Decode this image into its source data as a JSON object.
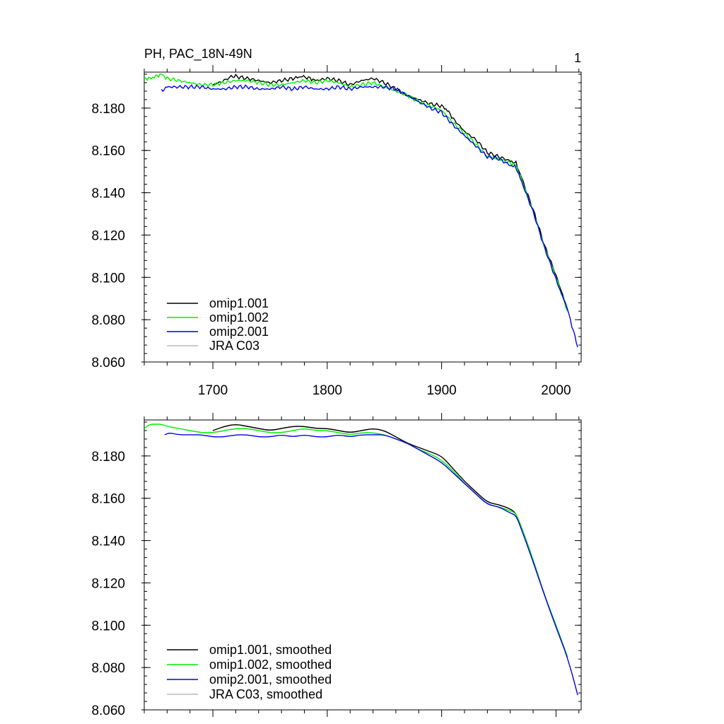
{
  "figure": {
    "title": "PH, PAC_18N-49N",
    "page_number": "1"
  },
  "chart_data": [
    {
      "type": "line",
      "title": "",
      "xlabel": "",
      "ylabel": "",
      "xlim": [
        1640,
        2022
      ],
      "ylim": [
        8.06,
        8.197
      ],
      "yticks": [
        "8.060",
        "8.080",
        "8.100",
        "8.120",
        "8.140",
        "8.160",
        "8.180"
      ],
      "xticks": [
        "1700",
        "1800",
        "1900",
        "2000"
      ],
      "grid": false,
      "legend_position": "bottom-left",
      "series": [
        {
          "name": "omip1.001",
          "color": "#000000",
          "x": [
            1700,
            1710,
            1716,
            1720,
            1730,
            1740,
            1750,
            1760,
            1770,
            1778,
            1785,
            1790,
            1800,
            1810,
            1820,
            1830,
            1840,
            1850,
            1860,
            1870,
            1880,
            1890,
            1900,
            1905,
            1910,
            1920,
            1930,
            1940,
            1950,
            1960,
            1965,
            1970,
            1980,
            1990,
            2000,
            2010
          ],
          "y": [
            8.191,
            8.193,
            8.195,
            8.195,
            8.194,
            8.193,
            8.192,
            8.193,
            8.194,
            8.195,
            8.194,
            8.193,
            8.194,
            8.193,
            8.191,
            8.193,
            8.194,
            8.192,
            8.189,
            8.186,
            8.184,
            8.182,
            8.181,
            8.179,
            8.175,
            8.169,
            8.165,
            8.159,
            8.157,
            8.155,
            8.154,
            8.147,
            8.132,
            8.115,
            8.101,
            8.085
          ]
        },
        {
          "name": "omip1.002",
          "color": "#00ee00",
          "x": [
            1640,
            1645,
            1650,
            1655,
            1660,
            1670,
            1680,
            1690,
            1700,
            1710,
            1720,
            1730,
            1740,
            1750,
            1760,
            1770,
            1780,
            1790,
            1800,
            1810,
            1820,
            1830,
            1840,
            1850,
            1860,
            1870,
            1880,
            1890,
            1900,
            1910,
            1920,
            1930,
            1940,
            1950,
            1960,
            1965,
            1970,
            1980,
            1990,
            2000,
            2010
          ],
          "y": [
            8.194,
            8.194,
            8.195,
            8.196,
            8.194,
            8.193,
            8.192,
            8.191,
            8.191,
            8.192,
            8.193,
            8.193,
            8.192,
            8.191,
            8.191,
            8.192,
            8.193,
            8.192,
            8.193,
            8.192,
            8.19,
            8.191,
            8.192,
            8.19,
            8.188,
            8.186,
            8.183,
            8.181,
            8.179,
            8.173,
            8.168,
            8.163,
            8.157,
            8.156,
            8.154,
            8.153,
            8.146,
            8.131,
            8.114,
            8.1,
            8.084
          ]
        },
        {
          "name": "omip2.001",
          "color": "#0000ee",
          "x": [
            1655,
            1660,
            1670,
            1680,
            1690,
            1700,
            1710,
            1720,
            1730,
            1740,
            1750,
            1760,
            1770,
            1780,
            1790,
            1800,
            1810,
            1820,
            1830,
            1840,
            1850,
            1860,
            1870,
            1880,
            1890,
            1900,
            1910,
            1920,
            1930,
            1940,
            1950,
            1960,
            1965,
            1970,
            1980,
            1990,
            2000,
            2010,
            2019
          ],
          "y": [
            8.188,
            8.19,
            8.19,
            8.19,
            8.19,
            8.189,
            8.189,
            8.19,
            8.19,
            8.189,
            8.189,
            8.19,
            8.189,
            8.19,
            8.189,
            8.189,
            8.19,
            8.189,
            8.19,
            8.19,
            8.19,
            8.189,
            8.186,
            8.183,
            8.18,
            8.178,
            8.172,
            8.167,
            8.162,
            8.157,
            8.156,
            8.153,
            8.152,
            8.145,
            8.131,
            8.114,
            8.099,
            8.085,
            8.067
          ]
        },
        {
          "name": "JRA C03",
          "color": "#bbbbbb",
          "x": [],
          "y": []
        }
      ]
    },
    {
      "type": "line",
      "title": "",
      "xlabel": "",
      "ylabel": "",
      "xlim": [
        1640,
        2022
      ],
      "ylim": [
        8.06,
        8.197
      ],
      "yticks": [
        "8.060",
        "8.080",
        "8.100",
        "8.120",
        "8.140",
        "8.160",
        "8.180"
      ],
      "xticks": [],
      "grid": false,
      "legend_position": "bottom-left",
      "series": [
        {
          "name": "omip1.001, smoothed",
          "color": "#000000",
          "x": [
            1700,
            1710,
            1720,
            1730,
            1740,
            1750,
            1760,
            1770,
            1780,
            1790,
            1800,
            1810,
            1820,
            1830,
            1840,
            1850,
            1860,
            1870,
            1880,
            1890,
            1900,
            1910,
            1920,
            1930,
            1940,
            1950,
            1960,
            1965,
            1970,
            1980,
            1990,
            2000,
            2010
          ],
          "y": [
            8.192,
            8.194,
            8.195,
            8.194,
            8.193,
            8.192,
            8.193,
            8.194,
            8.194,
            8.193,
            8.193,
            8.192,
            8.191,
            8.192,
            8.193,
            8.192,
            8.189,
            8.186,
            8.184,
            8.182,
            8.18,
            8.174,
            8.168,
            8.163,
            8.158,
            8.157,
            8.155,
            8.153,
            8.146,
            8.131,
            8.114,
            8.1,
            8.085
          ]
        },
        {
          "name": "omip1.002, smoothed",
          "color": "#00ee00",
          "x": [
            1640,
            1645,
            1650,
            1655,
            1660,
            1670,
            1680,
            1690,
            1700,
            1710,
            1720,
            1730,
            1740,
            1750,
            1760,
            1770,
            1780,
            1790,
            1800,
            1810,
            1820,
            1830,
            1840,
            1850,
            1860,
            1870,
            1880,
            1890,
            1900,
            1910,
            1920,
            1930,
            1940,
            1950,
            1960,
            1965,
            1970,
            1980,
            1990,
            2000,
            2010
          ],
          "y": [
            8.193,
            8.195,
            8.195,
            8.195,
            8.194,
            8.193,
            8.192,
            8.191,
            8.191,
            8.192,
            8.193,
            8.193,
            8.192,
            8.191,
            8.191,
            8.192,
            8.193,
            8.192,
            8.192,
            8.191,
            8.19,
            8.191,
            8.191,
            8.19,
            8.188,
            8.186,
            8.183,
            8.181,
            8.178,
            8.173,
            8.167,
            8.162,
            8.157,
            8.156,
            8.154,
            8.153,
            8.146,
            8.131,
            8.114,
            8.1,
            8.085
          ]
        },
        {
          "name": "omip2.001, smoothed",
          "color": "#0000ee",
          "x": [
            1658,
            1662,
            1670,
            1680,
            1690,
            1700,
            1710,
            1720,
            1730,
            1740,
            1750,
            1760,
            1770,
            1780,
            1790,
            1800,
            1810,
            1820,
            1830,
            1840,
            1850,
            1860,
            1870,
            1880,
            1890,
            1900,
            1910,
            1920,
            1930,
            1940,
            1950,
            1960,
            1965,
            1970,
            1980,
            1990,
            2000,
            2010,
            2019
          ],
          "y": [
            8.19,
            8.191,
            8.19,
            8.19,
            8.19,
            8.189,
            8.189,
            8.19,
            8.19,
            8.189,
            8.189,
            8.19,
            8.189,
            8.19,
            8.189,
            8.189,
            8.19,
            8.189,
            8.19,
            8.19,
            8.19,
            8.188,
            8.186,
            8.183,
            8.18,
            8.177,
            8.172,
            8.167,
            8.162,
            8.157,
            8.156,
            8.153,
            8.152,
            8.145,
            8.13,
            8.114,
            8.099,
            8.085,
            8.067
          ]
        },
        {
          "name": "JRA C03, smoothed",
          "color": "#bbbbbb",
          "x": [],
          "y": []
        }
      ]
    }
  ]
}
